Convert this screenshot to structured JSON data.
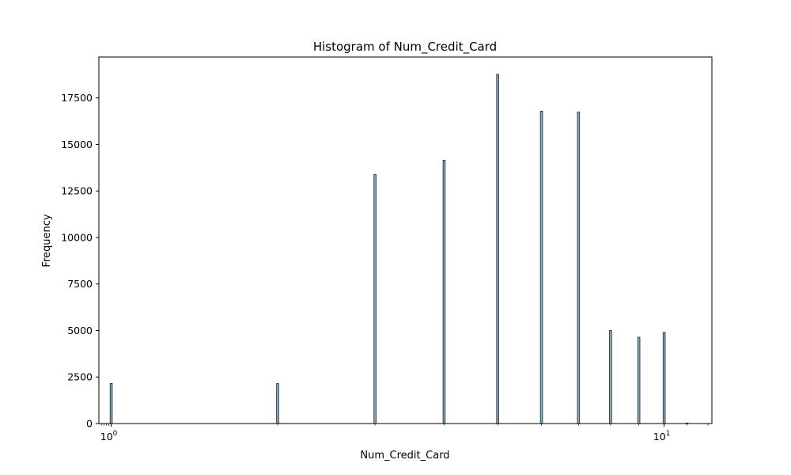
{
  "chart_data": {
    "type": "bar",
    "title": "Histogram of Num_Credit_Card",
    "xlabel": "Num_Credit_Card",
    "ylabel": "Frequency",
    "x_scale": "log",
    "xlim": [
      0.95,
      12.2
    ],
    "ylim": [
      0,
      19700
    ],
    "x_ticks": [
      {
        "value": 1,
        "base": "10",
        "exp": "0"
      },
      {
        "value": 10,
        "base": "10",
        "exp": "1"
      }
    ],
    "y_ticks": [
      {
        "value": 0,
        "label": "0"
      },
      {
        "value": 2500,
        "label": "2500"
      },
      {
        "value": 5000,
        "label": "5000"
      },
      {
        "value": 7500,
        "label": "7500"
      },
      {
        "value": 10000,
        "label": "10000"
      },
      {
        "value": 12500,
        "label": "12500"
      },
      {
        "value": 15000,
        "label": "15000"
      },
      {
        "value": 17500,
        "label": "17500"
      }
    ],
    "bins": [
      {
        "x": 1,
        "value": 2150
      },
      {
        "x": 2,
        "value": 2150
      },
      {
        "x": 3,
        "value": 13390
      },
      {
        "x": 4,
        "value": 14150
      },
      {
        "x": 5,
        "value": 18770
      },
      {
        "x": 6,
        "value": 16790
      },
      {
        "x": 7,
        "value": 16740
      },
      {
        "x": 8,
        "value": 5010
      },
      {
        "x": 9,
        "value": 4640
      },
      {
        "x": 10,
        "value": 4900
      },
      {
        "x": 11,
        "value": 30
      }
    ],
    "bar_color": "#7fadcc",
    "edge_color": "#222222",
    "grid": false,
    "legend": "none"
  }
}
